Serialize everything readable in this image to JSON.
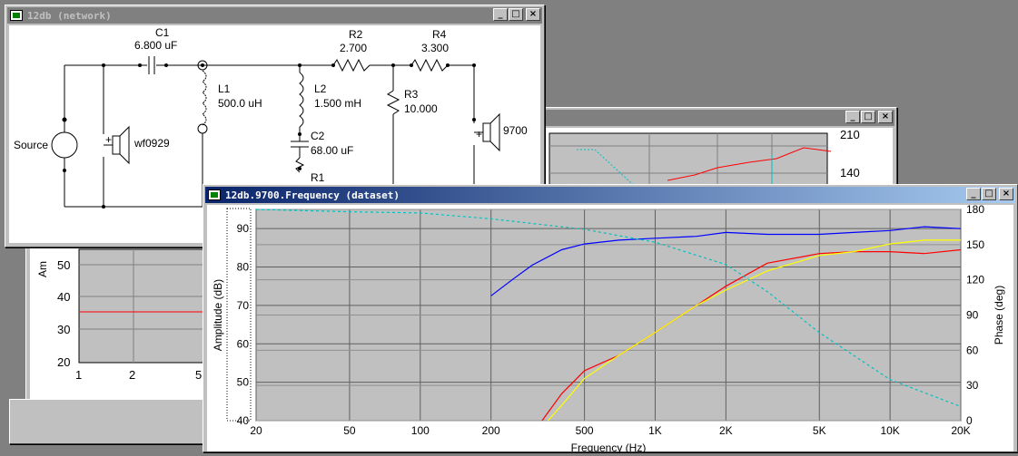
{
  "windows": {
    "network": {
      "title": "12db (network)",
      "components": {
        "c1": {
          "name": "C1",
          "value": "6.800 uF"
        },
        "r2": {
          "name": "R2",
          "value": "2.700"
        },
        "r4": {
          "name": "R4",
          "value": "3.300"
        },
        "l1": {
          "name": "L1",
          "value": "500.0 uH"
        },
        "l2": {
          "name": "L2",
          "value": "1.500 mH"
        },
        "r3": {
          "name": "R3",
          "value": "10.000"
        },
        "c2": {
          "name": "C2",
          "value": "68.00 uF"
        },
        "r1": {
          "name": "R1"
        },
        "source": "Source",
        "driver1": "wf0929",
        "driver2": "9700"
      }
    },
    "back_graph": {
      "right_ticks": [
        "210",
        "140"
      ]
    },
    "left_graph": {
      "yaxis_label": "Am",
      "yticks": [
        "50",
        "40",
        "30",
        "20"
      ],
      "xticks": [
        "1",
        "2",
        "5"
      ]
    },
    "frequency": {
      "title": "12db.9700.Frequency (dataset)"
    }
  },
  "chart_data": {
    "type": "line",
    "xlabel": "Frequency (Hz)",
    "ylabel": "Amplitude (dB)",
    "y2label": "Phase (deg)",
    "xscale": "log",
    "xlim": [
      20,
      20000
    ],
    "ylim": [
      40,
      95
    ],
    "y2lim": [
      0,
      180
    ],
    "xticks": [
      {
        "v": 20,
        "label": "20"
      },
      {
        "v": 50,
        "label": "50"
      },
      {
        "v": 100,
        "label": "100"
      },
      {
        "v": 200,
        "label": "200"
      },
      {
        "v": 500,
        "label": "500"
      },
      {
        "v": 1000,
        "label": "1K"
      },
      {
        "v": 2000,
        "label": "2K"
      },
      {
        "v": 5000,
        "label": "5K"
      },
      {
        "v": 10000,
        "label": "10K"
      },
      {
        "v": 20000,
        "label": "20K"
      }
    ],
    "yticks": [
      {
        "v": 40,
        "label": "40"
      },
      {
        "v": 50,
        "label": "50"
      },
      {
        "v": 60,
        "label": "60"
      },
      {
        "v": 70,
        "label": "70"
      },
      {
        "v": 80,
        "label": "80"
      },
      {
        "v": 90,
        "label": "90"
      }
    ],
    "y2ticks": [
      {
        "v": 0,
        "label": "0"
      },
      {
        "v": 30,
        "label": "30"
      },
      {
        "v": 60,
        "label": "60"
      },
      {
        "v": 90,
        "label": "90"
      },
      {
        "v": 120,
        "label": "120"
      },
      {
        "v": 150,
        "label": "150"
      },
      {
        "v": 180,
        "label": "180"
      }
    ],
    "grid": true,
    "series": [
      {
        "color": "#0000ff",
        "axis": "y",
        "x": [
          200,
          250,
          300,
          400,
          500,
          700,
          1000,
          1500,
          2000,
          3000,
          5000,
          7000,
          10000,
          14000,
          20000
        ],
        "y": [
          72.5,
          77,
          80.5,
          84.5,
          86,
          87,
          87.5,
          88,
          89,
          88.5,
          88.5,
          89,
          89.5,
          90.5,
          90
        ]
      },
      {
        "color": "#ff0000",
        "axis": "y",
        "x": [
          330,
          400,
          500,
          700,
          1000,
          1500,
          2000,
          3000,
          5000,
          7000,
          10000,
          14000,
          20000
        ],
        "y": [
          40,
          47,
          53,
          57,
          63,
          70,
          75,
          81,
          83.5,
          84,
          84,
          83.5,
          84.5
        ]
      },
      {
        "color": "#ffff00",
        "axis": "y",
        "x": [
          350,
          400,
          500,
          700,
          1000,
          1500,
          2000,
          3000,
          5000,
          7000,
          10000,
          14000,
          20000
        ],
        "y": [
          40,
          44,
          51,
          57,
          63,
          70,
          74,
          79,
          83,
          84,
          86,
          87,
          87
        ]
      },
      {
        "color": "#00c0c0",
        "axis": "y2",
        "dashed": true,
        "x": [
          20,
          50,
          100,
          200,
          500,
          1000,
          2000,
          3000,
          5000,
          10000,
          20000
        ],
        "y": [
          180,
          178,
          177,
          172,
          163,
          152,
          133,
          110,
          75,
          35,
          12
        ]
      }
    ]
  }
}
